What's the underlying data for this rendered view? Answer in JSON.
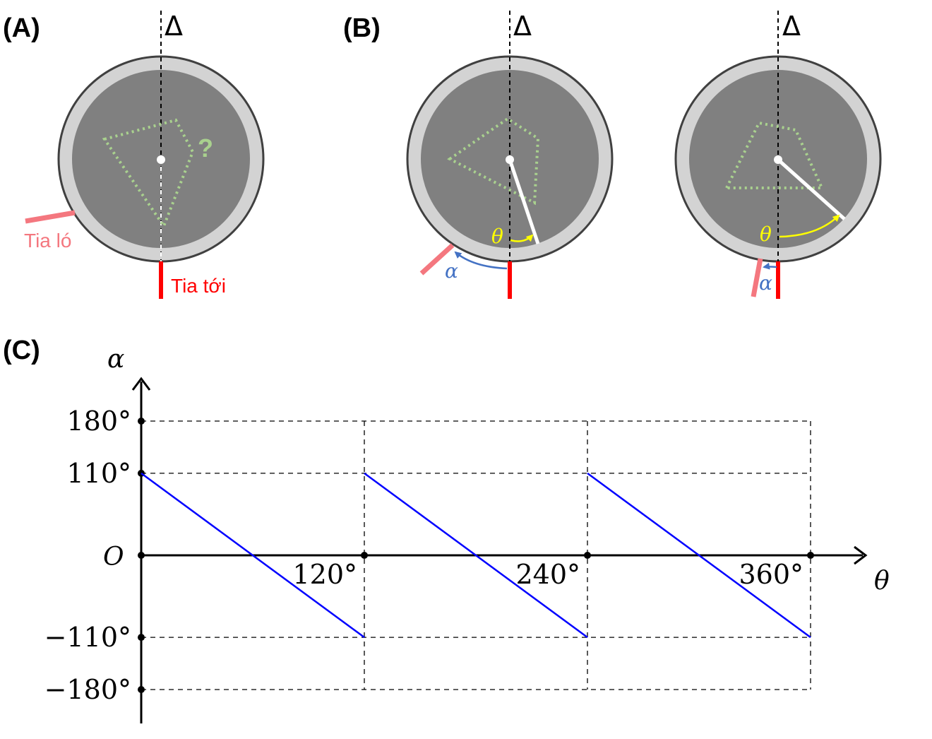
{
  "panel_a": {
    "label": "(A)",
    "axis_symbol": "Δ",
    "unknown_mark": "?",
    "exit_ray_label": "Tia ló",
    "incident_ray_label": "Tia tới"
  },
  "panel_b": {
    "label": "(B)",
    "axis_symbol_1": "Δ",
    "axis_symbol_2": "Δ",
    "theta_symbol": "θ",
    "alpha_symbol": "α"
  },
  "panel_c": {
    "label": "(C)",
    "y_axis_symbol": "α",
    "x_axis_symbol": "θ",
    "origin_label": "O"
  },
  "colors": {
    "disk_outer": "#d3d3d3",
    "disk_inner": "#808080",
    "disk_edge": "#404040",
    "prism": "#a9d18e",
    "incident_ray": "#ff0000",
    "exit_ray": "#f4777f",
    "theta_arrow": "#ffff00",
    "alpha_arrow": "#4472c4",
    "curve": "#0000ff"
  },
  "chart_data": {
    "type": "line",
    "xlabel": "θ",
    "ylabel": "α",
    "x_ticks": [
      "120°",
      "240°",
      "360°"
    ],
    "y_ticks": [
      "180°",
      "110°",
      "O",
      "−110°",
      "−180°"
    ],
    "xlim": [
      0,
      360
    ],
    "ylim": [
      -180,
      180
    ],
    "grid": "dashed at x = 120, 240, 360 and y = ±110, ±180",
    "series": [
      {
        "x": [
          0,
          120
        ],
        "y": [
          110,
          -110
        ]
      },
      {
        "x": [
          120,
          240
        ],
        "y": [
          110,
          -110
        ]
      },
      {
        "x": [
          240,
          360
        ],
        "y": [
          110,
          -110
        ]
      }
    ]
  }
}
